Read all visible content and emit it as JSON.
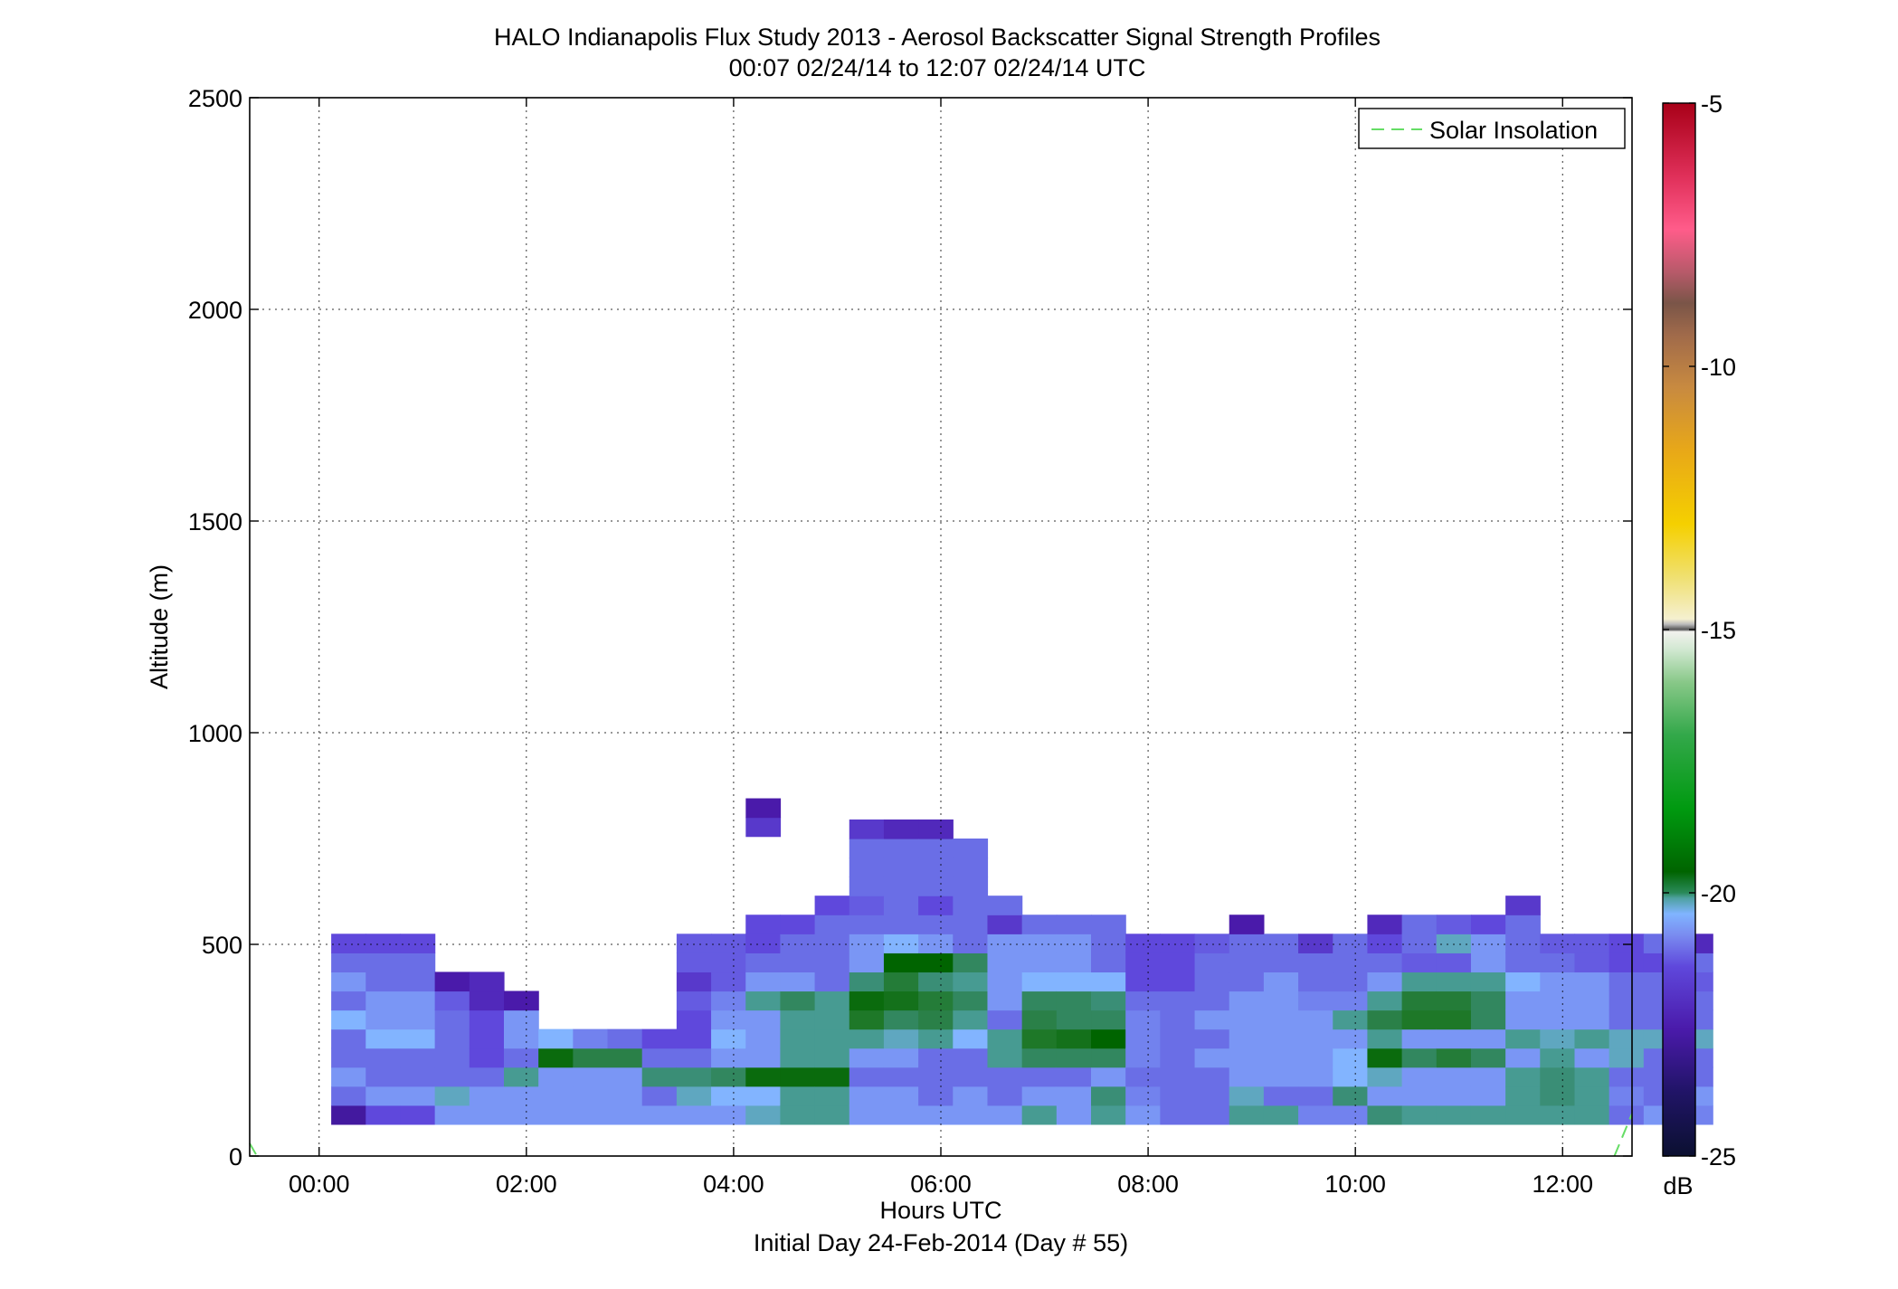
{
  "chart_data": {
    "type": "heatmap",
    "title": "HALO Indianapolis Flux Study 2013 - Aerosol Backscatter Signal Strength Profiles",
    "subtitle": "00:07 02/24/14 to 12:07 02/24/14  UTC",
    "xlabel": "Hours UTC",
    "xlabel2": "Initial Day 24-Feb-2014 (Day # 55)",
    "ylabel": "Altitude (m)",
    "xlim": [
      -0.67,
      12.67
    ],
    "ylim": [
      0,
      2500
    ],
    "x_ticks": [
      0,
      2,
      4,
      6,
      8,
      10,
      12
    ],
    "x_tick_labels": [
      "00:00",
      "02:00",
      "04:00",
      "06:00",
      "08:00",
      "10:00",
      "12:00"
    ],
    "y_ticks": [
      0,
      500,
      1000,
      1500,
      2000,
      2500
    ],
    "y_tick_labels": [
      "0",
      "500",
      "1000",
      "1500",
      "2000",
      "2500"
    ],
    "grid": true,
    "legend": {
      "position": "top-right",
      "entries": [
        {
          "name": "Solar Insolation",
          "color": "#66dd66",
          "style": "dashed"
        }
      ]
    },
    "colorbar": {
      "label": "dB",
      "range": [
        -25,
        -5
      ],
      "ticks": [
        -25,
        -20,
        -15,
        -10,
        -5
      ],
      "tick_labels": [
        "-25",
        "-20",
        "-15",
        "-10",
        "-5"
      ]
    },
    "time_start_hours": 0.1167,
    "time_step_hours": 0.3333,
    "altitude_bin_base_m": 75,
    "altitude_bin_size_m": 45,
    "columns": [
      [
        -22.8,
        -21.6,
        -21.2,
        -21.6,
        -21.6,
        -21.0,
        -21.6,
        -21.2,
        -21.6,
        -22.0
      ],
      [
        -22.0,
        -21.2,
        -21.6,
        -21.6,
        -21.0,
        -21.2,
        -21.2,
        -21.6,
        -21.6,
        -22.0
      ],
      [
        -22.0,
        -21.2,
        -21.6,
        -21.6,
        -21.0,
        -21.2,
        -21.2,
        -21.6,
        -21.6,
        -22.0
      ],
      [
        -21.2,
        -20.8,
        -21.6,
        -21.6,
        -21.6,
        -21.6,
        -21.8,
        -22.6
      ],
      [
        -21.2,
        -21.2,
        -21.6,
        -22.0,
        -22.0,
        -22.0,
        -22.4,
        -22.4
      ],
      [
        -21.2,
        -21.2,
        -20.6,
        -21.6,
        -21.2,
        -21.2,
        -22.6
      ],
      [
        -21.2,
        -21.2,
        -21.2,
        -19.2,
        -21.0
      ],
      [
        -21.2,
        -21.2,
        -21.2,
        -20.0,
        -21.4
      ],
      [
        -21.2,
        -21.2,
        -21.2,
        -20.0,
        -21.6
      ],
      [
        -21.2,
        -21.6,
        -20.4,
        -21.6,
        -22.0
      ],
      [
        -21.2,
        -20.8,
        -20.4,
        -21.6,
        -22.0,
        -22.0,
        -21.8,
        -22.2,
        -21.8,
        -21.8
      ],
      [
        -21.2,
        -21.0,
        -20.2,
        -21.2,
        -21.0,
        -21.2,
        -21.4,
        -21.8,
        -21.8,
        -21.8
      ],
      [
        -20.8,
        -21.0,
        -19.2,
        -21.2,
        -21.2,
        -21.2,
        -20.6,
        -21.2,
        -21.6,
        -22.0,
        -22.0
      ],
      [
        -20.6,
        -20.6,
        -19.2,
        -20.6,
        -20.6,
        -20.6,
        -20.2,
        -21.2,
        -21.6,
        -21.6,
        -22.0
      ],
      [
        -20.6,
        -20.6,
        -19.2,
        -20.6,
        -20.6,
        -20.6,
        -20.6,
        -21.6,
        -21.6,
        -21.6,
        -21.6,
        -22.0
      ],
      [
        -21.2,
        -21.2,
        -21.6,
        -21.2,
        -20.6,
        -19.6,
        -19.2,
        -20.4,
        -21.2,
        -21.2,
        -21.6,
        -21.8,
        -21.6,
        -21.6,
        -21.6,
        -22.2
      ],
      [
        -21.2,
        -21.2,
        -21.6,
        -21.2,
        -20.8,
        -20.2,
        -19.4,
        -19.8,
        -19.0,
        -21.0,
        -21.6,
        -21.6,
        -21.6,
        -21.6,
        -21.6,
        -22.4
      ],
      [
        -21.2,
        -21.6,
        -21.6,
        -21.6,
        -20.6,
        -20.0,
        -19.8,
        -20.4,
        -19.0,
        -21.2,
        -21.6,
        -22.0,
        -21.6,
        -21.6,
        -21.6,
        -22.4
      ],
      [
        -21.2,
        -21.2,
        -21.6,
        -21.6,
        -21.0,
        -20.6,
        -20.2,
        -20.6,
        -20.2,
        -21.6,
        -21.6,
        -21.6,
        -21.6,
        -21.6,
        -21.6
      ],
      [
        -21.2,
        -21.6,
        -21.6,
        -20.6,
        -20.6,
        -21.6,
        -21.2,
        -21.2,
        -21.2,
        -21.2,
        -22.2,
        -21.6
      ],
      [
        -20.6,
        -21.2,
        -21.6,
        -20.2,
        -19.6,
        -20.0,
        -20.2,
        -21.0,
        -21.2,
        -21.2,
        -21.6
      ],
      [
        -21.2,
        -21.2,
        -21.6,
        -20.2,
        -19.4,
        -20.2,
        -20.2,
        -21.0,
        -21.2,
        -21.2,
        -21.6
      ],
      [
        -20.6,
        -20.4,
        -21.2,
        -20.2,
        -19.0,
        -20.2,
        -20.4,
        -21.0,
        -21.6,
        -21.6,
        -21.6
      ],
      [
        -21.2,
        -21.4,
        -21.6,
        -21.4,
        -21.4,
        -21.4,
        -21.6,
        -22.0,
        -22.0,
        -22.0
      ],
      [
        -21.6,
        -21.6,
        -21.6,
        -21.6,
        -21.6,
        -21.6,
        -21.6,
        -22.0,
        -22.0,
        -22.0
      ],
      [
        -21.6,
        -21.6,
        -21.6,
        -21.2,
        -21.6,
        -21.2,
        -21.6,
        -21.6,
        -21.6,
        -21.8
      ],
      [
        -20.6,
        -20.8,
        -21.2,
        -21.2,
        -21.2,
        -21.2,
        -21.2,
        -21.6,
        -21.6,
        -21.6,
        -22.6
      ],
      [
        -20.6,
        -21.6,
        -21.2,
        -21.2,
        -21.2,
        -21.2,
        -21.2,
        -21.2,
        -21.6,
        -21.6
      ],
      [
        -21.4,
        -21.6,
        -21.2,
        -21.2,
        -21.2,
        -21.2,
        -21.4,
        -21.6,
        -21.6,
        -22.2
      ],
      [
        -21.4,
        -20.4,
        -21.0,
        -21.0,
        -21.2,
        -20.6,
        -21.4,
        -21.6,
        -21.6,
        -21.6
      ],
      [
        -20.4,
        -21.2,
        -20.8,
        -19.2,
        -20.6,
        -20.0,
        -20.6,
        -21.2,
        -21.6,
        -22.0,
        -22.4
      ],
      [
        -20.6,
        -21.2,
        -21.2,
        -20.2,
        -21.2,
        -19.6,
        -19.8,
        -20.6,
        -21.8,
        -21.6,
        -21.6
      ],
      [
        -20.6,
        -21.2,
        -21.2,
        -19.8,
        -21.2,
        -19.6,
        -19.8,
        -20.6,
        -21.8,
        -20.8,
        -21.8
      ],
      [
        -20.6,
        -21.2,
        -21.2,
        -20.2,
        -21.2,
        -20.2,
        -20.2,
        -20.6,
        -21.2,
        -21.2,
        -22.0
      ],
      [
        -20.6,
        -20.6,
        -20.6,
        -21.2,
        -20.6,
        -21.2,
        -21.2,
        -21.0,
        -21.6,
        -21.6,
        -21.6,
        -22.2
      ],
      [
        -20.6,
        -20.4,
        -20.4,
        -20.6,
        -20.8,
        -21.2,
        -21.2,
        -21.2,
        -21.6,
        -21.8
      ],
      [
        -20.6,
        -20.6,
        -20.6,
        -21.2,
        -20.6,
        -21.2,
        -21.2,
        -21.2,
        -21.8,
        -21.8
      ],
      [
        -21.6,
        -21.4,
        -21.6,
        -20.8,
        -20.8,
        -21.6,
        -21.6,
        -21.6,
        -22.0,
        -22.0
      ],
      [
        -21.2,
        -21.6,
        -21.6,
        -21.6,
        -20.8,
        -21.6,
        -21.6,
        -21.6,
        -22.0,
        -21.6
      ],
      [
        -21.4,
        -21.2,
        -21.6,
        -21.6,
        -20.8,
        -21.6,
        -21.6,
        -21.8,
        -21.6,
        -22.4
      ]
    ]
  }
}
